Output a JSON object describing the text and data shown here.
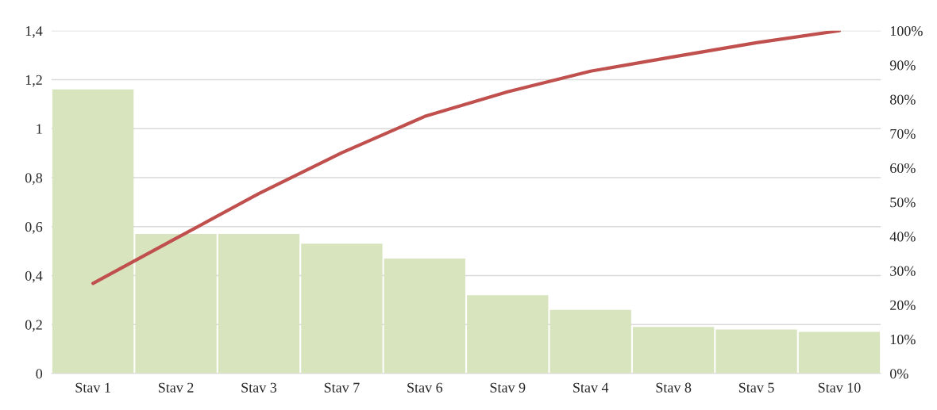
{
  "chart_data": {
    "type": "bar",
    "categories": [
      "Stav 1",
      "Stav 2",
      "Stav 3",
      "Stav 7",
      "Stav 6",
      "Stav 9",
      "Stav 4",
      "Stav 8",
      "Stav 5",
      "Stav 10"
    ],
    "series": [
      {
        "color": "#d7e4bd",
        "values": [
          1.16,
          0.57,
          0.57,
          0.53,
          0.47,
          0.32,
          0.26,
          0.19,
          0.18,
          0.17
        ]
      },
      {
        "type": "line",
        "axis": "y2",
        "color": "#c0504d",
        "values": [
          26.3,
          39.4,
          52.5,
          64.4,
          75.0,
          82.2,
          88.2,
          92.4,
          96.5,
          100
        ]
      }
    ],
    "ylim": [
      0,
      1.4
    ],
    "yticks": [
      0,
      {
        "value": 0.2,
        "label": "0,2"
      },
      {
        "value": 0.4,
        "label": "0,4"
      },
      {
        "value": 0.6,
        "label": "0,6"
      },
      {
        "value": 0.8,
        "label": "0,8"
      },
      1,
      {
        "value": 1.2,
        "label": "1,2"
      },
      {
        "value": 1.4,
        "label": "1,4"
      }
    ],
    "y2lim": [
      0,
      100
    ],
    "y2ticks": [
      {
        "value": 0,
        "label": "0%"
      },
      {
        "value": 10,
        "label": "10%"
      },
      {
        "value": 20,
        "label": "20%"
      },
      {
        "value": 30,
        "label": "30%"
      },
      {
        "value": 40,
        "label": "40%"
      },
      {
        "value": 50,
        "label": "50%"
      },
      {
        "value": 60,
        "label": "60%"
      },
      {
        "value": 70,
        "label": "70%"
      },
      {
        "value": 80,
        "label": "80%"
      },
      {
        "value": 90,
        "label": "90%"
      },
      {
        "value": 100,
        "label": "100%"
      }
    ],
    "grid": "y",
    "legend": false,
    "marker": "none",
    "line_style": "solid"
  }
}
